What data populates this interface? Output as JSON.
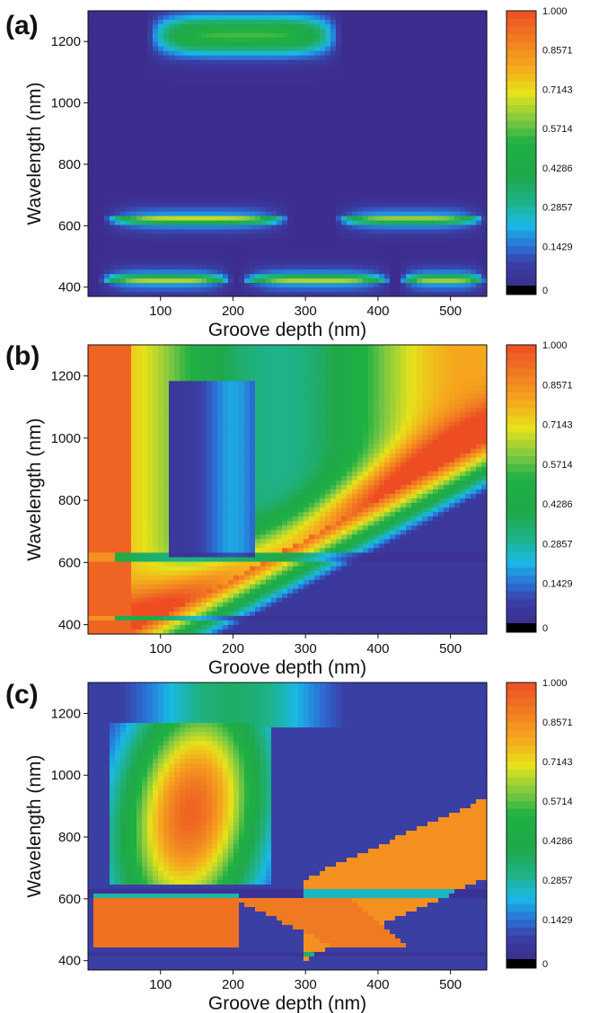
{
  "chart_data": [
    {
      "type": "heatmap",
      "panel_label": "(a)",
      "xlabel": "Groove depth (nm)",
      "ylabel": "Wavelength (nm)",
      "xlim": [
        0,
        550
      ],
      "ylim": [
        370,
        1300
      ],
      "x_ticks": [
        100,
        200,
        300,
        400,
        500
      ],
      "y_ticks": [
        400,
        600,
        800,
        1000,
        1200
      ],
      "colorbar": {
        "min": 0,
        "max": 1.0,
        "tick_values": [
          0,
          0.1429,
          0.2857,
          0.4286,
          0.5714,
          0.7143,
          0.8571,
          1.0
        ],
        "tick_labels": [
          "0",
          "0.1429",
          "0.2857",
          "0.4286",
          "0.5714",
          "0.7143",
          "0.8571",
          "1.000"
        ]
      },
      "features": [
        {
          "depth_range": [
            20,
            280
          ],
          "wavelength": 620,
          "peak_value": 0.75
        },
        {
          "depth_range": [
            340,
            550
          ],
          "wavelength": 620,
          "peak_value": 0.7
        },
        {
          "depth_range": [
            15,
            200
          ],
          "wavelength": 425,
          "peak_value": 0.72
        },
        {
          "depth_range": [
            210,
            420
          ],
          "wavelength": 425,
          "peak_value": 0.72
        },
        {
          "depth_range": [
            430,
            550
          ],
          "wavelength": 425,
          "peak_value": 0.7
        },
        {
          "depth_range": [
            80,
            350
          ],
          "wavelength": 1220,
          "peak_value": 0.55
        }
      ]
    },
    {
      "type": "heatmap",
      "panel_label": "(b)",
      "xlabel": "Groove depth (nm)",
      "ylabel": "Wavelength (nm)",
      "xlim": [
        0,
        550
      ],
      "ylim": [
        370,
        1300
      ],
      "x_ticks": [
        100,
        200,
        300,
        400,
        500
      ],
      "y_ticks": [
        400,
        600,
        800,
        1000,
        1200
      ],
      "colorbar": {
        "min": 0,
        "max": 1.0,
        "tick_values": [
          0,
          0.1429,
          0.2857,
          0.4286,
          0.5714,
          0.7143,
          0.8571,
          1.0
        ],
        "tick_labels": [
          "0",
          "0.1429",
          "0.2857",
          "0.4286",
          "0.5714",
          "0.7143",
          "0.8571",
          "1.000"
        ]
      }
    },
    {
      "type": "heatmap",
      "panel_label": "(c)",
      "xlabel": "Groove depth (nm)",
      "ylabel": "Wavelength (nm)",
      "xlim": [
        0,
        550
      ],
      "ylim": [
        370,
        1300
      ],
      "x_ticks": [
        100,
        200,
        300,
        400,
        500
      ],
      "y_ticks": [
        400,
        600,
        800,
        1000,
        1200
      ],
      "colorbar": {
        "min": 0,
        "max": 1.0,
        "tick_values": [
          0,
          0.1429,
          0.2857,
          0.4286,
          0.5714,
          0.7143,
          0.8571,
          1.0
        ],
        "tick_labels": [
          "0",
          "0.1429",
          "0.2857",
          "0.4286",
          "0.5714",
          "0.7143",
          "0.8571",
          "1.000"
        ]
      }
    }
  ],
  "colors": {
    "palette": [
      "#000000",
      "#3d2d8f",
      "#2b6fd6",
      "#19b9e6",
      "#1fb28a",
      "#1fa84a",
      "#7cc843",
      "#e6e21a",
      "#f6a51e",
      "#ee4d24"
    ]
  }
}
